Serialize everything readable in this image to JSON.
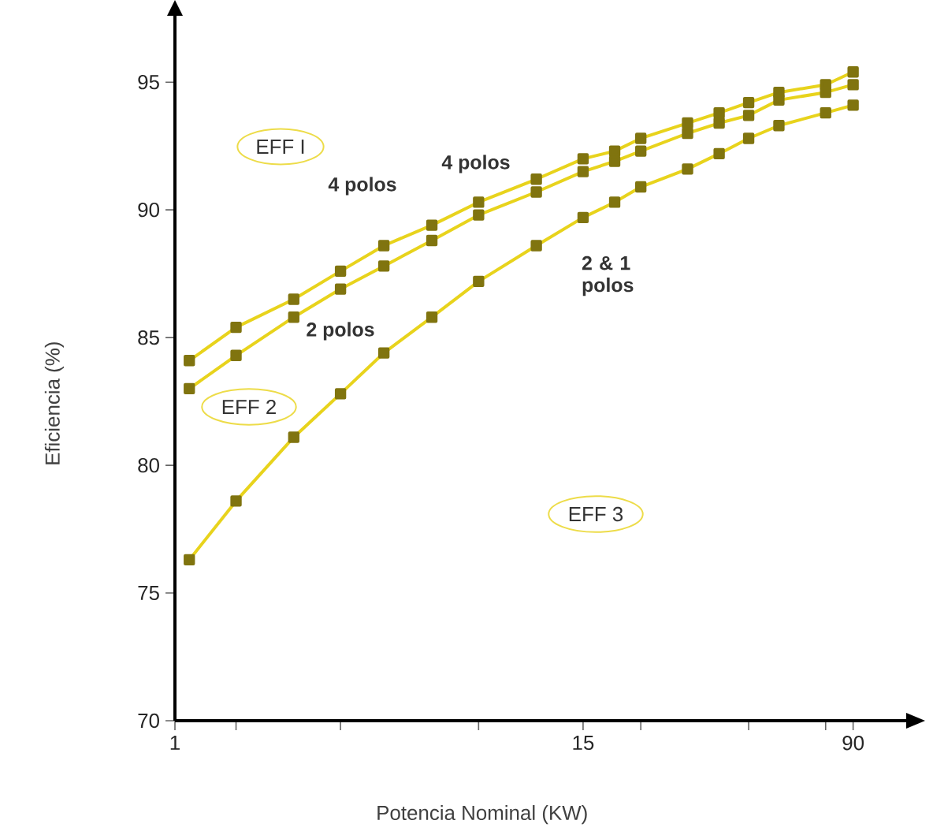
{
  "chart_data": {
    "type": "line",
    "xlabel": "Potencia Nominal (KW)",
    "ylabel": "Eficiencia (%)",
    "log": "x",
    "marker": "square",
    "line_style": "solid",
    "grid": false,
    "xlim": [
      1,
      128
    ],
    "ylim": [
      70,
      97.6
    ],
    "xticks": [
      1,
      {
        "value": 1.5,
        "label": null
      },
      {
        "value": 3,
        "label": null
      },
      {
        "value": 7.5,
        "label": null
      },
      15,
      {
        "value": 22,
        "label": null
      },
      {
        "value": 45,
        "label": null
      },
      {
        "value": 75,
        "label": null
      },
      90
    ],
    "yticks": [
      70,
      75,
      80,
      85,
      90,
      95
    ],
    "x": [
      1.1,
      1.5,
      2.2,
      3,
      4,
      5.5,
      7.5,
      11,
      15,
      18.5,
      22,
      30,
      37,
      45,
      55,
      75,
      90
    ],
    "series": [
      {
        "color": "#e8d31c",
        "values": [
          84.1,
          85.4,
          86.5,
          87.6,
          88.6,
          89.4,
          90.3,
          91.2,
          92.0,
          92.3,
          92.8,
          93.4,
          93.8,
          94.2,
          94.6,
          94.9,
          95.4
        ]
      },
      {
        "color": "#e8d31c",
        "values": [
          83.0,
          84.3,
          85.8,
          86.9,
          87.8,
          88.8,
          89.8,
          90.7,
          91.5,
          91.9,
          92.3,
          93.0,
          93.4,
          93.7,
          94.3,
          94.6,
          94.9
        ]
      },
      {
        "color": "#e8d31c",
        "values": [
          76.3,
          78.6,
          81.1,
          82.8,
          84.4,
          85.8,
          87.2,
          88.6,
          89.7,
          90.3,
          90.9,
          91.6,
          92.2,
          92.8,
          93.3,
          93.8,
          94.1
        ]
      }
    ],
    "annotations": [
      "EFF I",
      "EFF 2",
      "EFF 3",
      "4 polos",
      "4 polos",
      "2 polos",
      "2 & 1 polos"
    ]
  }
}
